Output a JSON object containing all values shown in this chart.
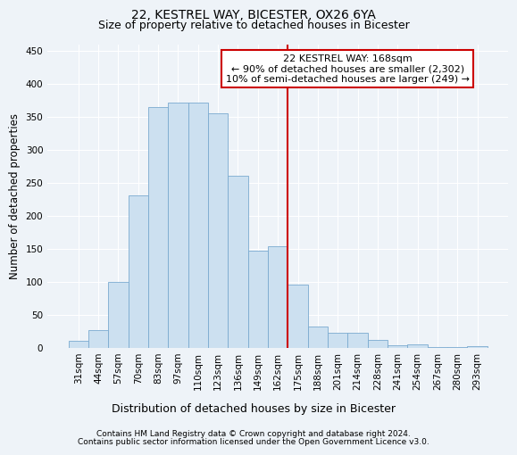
{
  "title": "22, KESTREL WAY, BICESTER, OX26 6YA",
  "subtitle": "Size of property relative to detached houses in Bicester",
  "xlabel": "Distribution of detached houses by size in Bicester",
  "ylabel": "Number of detached properties",
  "footer_line1": "Contains HM Land Registry data © Crown copyright and database right 2024.",
  "footer_line2": "Contains public sector information licensed under the Open Government Licence v3.0.",
  "bar_labels": [
    "31sqm",
    "44sqm",
    "57sqm",
    "70sqm",
    "83sqm",
    "97sqm",
    "110sqm",
    "123sqm",
    "136sqm",
    "149sqm",
    "162sqm",
    "175sqm",
    "188sqm",
    "201sqm",
    "214sqm",
    "228sqm",
    "241sqm",
    "254sqm",
    "267sqm",
    "280sqm",
    "293sqm"
  ],
  "bar_heights": [
    10,
    27,
    100,
    230,
    365,
    372,
    372,
    355,
    260,
    147,
    153,
    95,
    32,
    22,
    22,
    11,
    4,
    5,
    1,
    1,
    2
  ],
  "bar_color": "#cce0f0",
  "bar_edge_color": "#7aaad0",
  "annotation_text_line1": "22 KESTREL WAY: 168sqm",
  "annotation_text_line2": "← 90% of detached houses are smaller (2,302)",
  "annotation_text_line3": "10% of semi-detached houses are larger (249) →",
  "annotation_box_color": "#ffffff",
  "annotation_box_edge_color": "#cc0000",
  "vline_color": "#cc0000",
  "vline_x_index": 10.5,
  "ylim": [
    0,
    460
  ],
  "yticks": [
    0,
    50,
    100,
    150,
    200,
    250,
    300,
    350,
    400,
    450
  ],
  "background_color": "#eef3f8",
  "grid_color": "#ffffff",
  "title_fontsize": 10,
  "subtitle_fontsize": 9,
  "tick_fontsize": 7.5,
  "ylabel_fontsize": 8.5,
  "xlabel_fontsize": 9,
  "annotation_fontsize": 8,
  "footer_fontsize": 6.5
}
